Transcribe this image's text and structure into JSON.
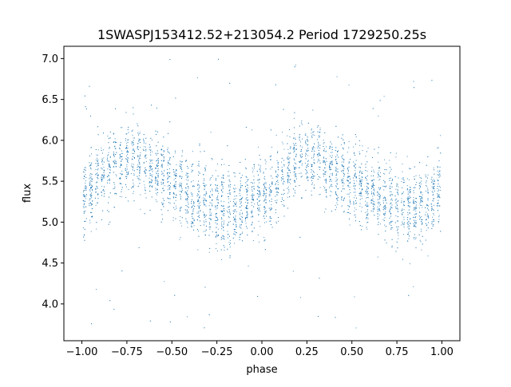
{
  "chart_data": {
    "type": "scatter",
    "title": "1SWASPJ153412.52+213054.2 Period 1729250.25s",
    "xlabel": "phase",
    "ylabel": "flux",
    "xlim": [
      -1.1,
      1.1
    ],
    "ylim": [
      3.55,
      7.15
    ],
    "xticks": [
      -1.0,
      -0.75,
      -0.5,
      -0.25,
      0.0,
      0.25,
      0.5,
      0.75,
      1.0
    ],
    "xtick_labels": [
      "−1.00",
      "−0.75",
      "−0.50",
      "−0.25",
      "0.00",
      "0.25",
      "0.50",
      "0.75",
      "1.00"
    ],
    "yticks": [
      4.0,
      4.5,
      5.0,
      5.5,
      6.0,
      6.5,
      7.0
    ],
    "ytick_labels": [
      "4.0",
      "4.5",
      "5.0",
      "5.5",
      "6.0",
      "6.5",
      "7.0"
    ],
    "grid": false,
    "marker_color": "#1f77b4",
    "series": [
      {
        "name": "",
        "phase_range": [
          -1.0,
          1.0
        ],
        "period_in_phase": 1.0,
        "mean_curve": {
          "x": [
            0.0,
            0.05,
            0.1,
            0.15,
            0.2,
            0.25,
            0.3,
            0.35,
            0.4,
            0.45,
            0.5,
            0.55,
            0.6,
            0.65,
            0.7,
            0.75,
            0.8,
            0.85,
            0.9,
            0.95,
            1.0
          ],
          "y": [
            5.25,
            5.4,
            5.55,
            5.65,
            5.75,
            5.8,
            5.78,
            5.7,
            5.62,
            5.55,
            5.48,
            5.42,
            5.35,
            5.3,
            5.22,
            5.18,
            5.15,
            5.15,
            5.2,
            5.3,
            5.45
          ]
        },
        "scatter_sd": 0.22,
        "outlier_y_range": [
          3.7,
          7.0
        ],
        "points_per_unit_phase": 2600
      }
    ]
  }
}
